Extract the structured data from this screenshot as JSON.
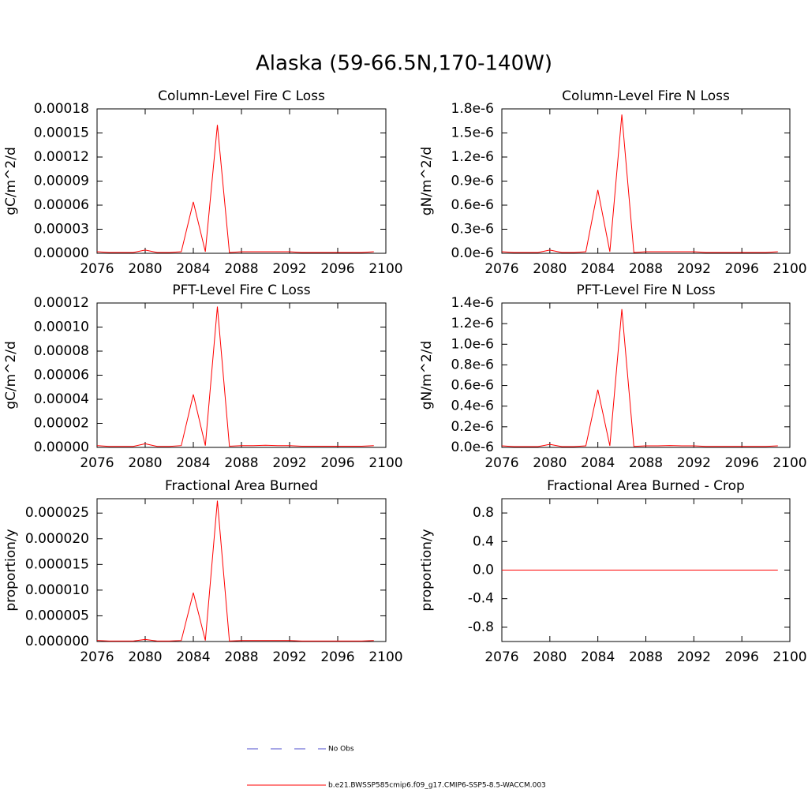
{
  "title": "Alaska (59-66.5N,170-140W)",
  "legend": [
    {
      "name": "No Obs",
      "color": "#4d4dcc",
      "dash": true
    },
    {
      "name": "b.e21.BWSSP585cmip6.f09_g17.CMIP6-SSP5-8.5-WACCM.003",
      "color": "#ff0000",
      "dash": false
    }
  ],
  "chart_data": [
    {
      "type": "line",
      "title": "Column-Level Fire C Loss",
      "y_label": "gC/m^2/d",
      "color": "#ff0000",
      "x": [
        2076,
        2077,
        2078,
        2079,
        2080,
        2081,
        2082,
        2083,
        2084,
        2085,
        2086,
        2087,
        2088,
        2089,
        2090,
        2091,
        2092,
        2093,
        2094,
        2095,
        2096,
        2097,
        2098,
        2099
      ],
      "values": [
        2e-06,
        1e-06,
        1e-06,
        1e-06,
        4e-06,
        1e-06,
        1e-06,
        2e-06,
        6.4e-05,
        2e-06,
        0.00016,
        1e-06,
        2e-06,
        2e-06,
        2e-06,
        2e-06,
        2e-06,
        1e-06,
        1e-06,
        1e-06,
        1e-06,
        1e-06,
        1e-06,
        2e-06
      ],
      "xlim": [
        2076,
        2100
      ],
      "xticks": [
        2076,
        2080,
        2084,
        2088,
        2092,
        2096,
        2100
      ],
      "ylim": [
        0,
        0.00018
      ],
      "yticks": [
        {
          "value": 0,
          "label": "0.00000"
        },
        {
          "value": 3e-05,
          "label": "0.00003"
        },
        {
          "value": 6e-05,
          "label": "0.00006"
        },
        {
          "value": 9e-05,
          "label": "0.00009"
        },
        {
          "value": 0.00012,
          "label": "0.00012"
        },
        {
          "value": 0.00015,
          "label": "0.00015"
        },
        {
          "value": 0.00018,
          "label": "0.00018"
        }
      ]
    },
    {
      "type": "line",
      "title": "Column-Level Fire N Loss",
      "y_label": "gN/m^2/d",
      "color": "#ff0000",
      "x": [
        2076,
        2077,
        2078,
        2079,
        2080,
        2081,
        2082,
        2083,
        2084,
        2085,
        2086,
        2087,
        2088,
        2089,
        2090,
        2091,
        2092,
        2093,
        2094,
        2095,
        2096,
        2097,
        2098,
        2099
      ],
      "values": [
        2e-08,
        1e-08,
        1e-08,
        1e-08,
        4e-08,
        1e-08,
        1e-08,
        2e-08,
        7.9e-07,
        2e-08,
        1.73e-06,
        1e-08,
        2e-08,
        2e-08,
        2e-08,
        2e-08,
        2e-08,
        1e-08,
        1e-08,
        1e-08,
        1e-08,
        1e-08,
        1e-08,
        2e-08
      ],
      "xlim": [
        2076,
        2100
      ],
      "xticks": [
        2076,
        2080,
        2084,
        2088,
        2092,
        2096,
        2100
      ],
      "ylim": [
        0,
        1.8e-06
      ],
      "yticks": [
        {
          "value": 0,
          "label": "0.0e-6"
        },
        {
          "value": 3e-07,
          "label": "0.3e-6"
        },
        {
          "value": 6e-07,
          "label": "0.6e-6"
        },
        {
          "value": 9e-07,
          "label": "0.9e-6"
        },
        {
          "value": 1.2e-06,
          "label": "1.2e-6"
        },
        {
          "value": 1.5e-06,
          "label": "1.5e-6"
        },
        {
          "value": 1.8e-06,
          "label": "1.8e-6"
        }
      ]
    },
    {
      "type": "line",
      "title": "PFT-Level Fire C Loss",
      "y_label": "gC/m^2/d",
      "color": "#ff0000",
      "x": [
        2076,
        2077,
        2078,
        2079,
        2080,
        2081,
        2082,
        2083,
        2084,
        2085,
        2086,
        2087,
        2088,
        2089,
        2090,
        2091,
        2092,
        2093,
        2094,
        2095,
        2096,
        2097,
        2098,
        2099
      ],
      "values": [
        1.5e-06,
        8e-07,
        8e-07,
        8e-07,
        3e-06,
        8e-07,
        8e-07,
        1.5e-06,
        4.4e-05,
        1.5e-06,
        0.000117,
        1e-06,
        1.5e-06,
        1.5e-06,
        1.8e-06,
        1.5e-06,
        1.5e-06,
        1e-06,
        1e-06,
        1e-06,
        1e-06,
        1e-06,
        1e-06,
        1.5e-06
      ],
      "xlim": [
        2076,
        2100
      ],
      "xticks": [
        2076,
        2080,
        2084,
        2088,
        2092,
        2096,
        2100
      ],
      "ylim": [
        0,
        0.00012
      ],
      "yticks": [
        {
          "value": 0,
          "label": "0.00000"
        },
        {
          "value": 2e-05,
          "label": "0.00002"
        },
        {
          "value": 4e-05,
          "label": "0.00004"
        },
        {
          "value": 6e-05,
          "label": "0.00006"
        },
        {
          "value": 8e-05,
          "label": "0.00008"
        },
        {
          "value": 0.0001,
          "label": "0.00010"
        },
        {
          "value": 0.00012,
          "label": "0.00012"
        }
      ]
    },
    {
      "type": "line",
      "title": "PFT-Level Fire N Loss",
      "y_label": "gN/m^2/d",
      "color": "#ff0000",
      "x": [
        2076,
        2077,
        2078,
        2079,
        2080,
        2081,
        2082,
        2083,
        2084,
        2085,
        2086,
        2087,
        2088,
        2089,
        2090,
        2091,
        2092,
        2093,
        2094,
        2095,
        2096,
        2097,
        2098,
        2099
      ],
      "values": [
        1.5e-08,
        8e-09,
        8e-09,
        8e-09,
        3e-08,
        8e-09,
        8e-09,
        1.5e-08,
        5.6e-07,
        1.5e-08,
        1.34e-06,
        1e-08,
        1.5e-08,
        1.5e-08,
        1.8e-08,
        1.5e-08,
        1.5e-08,
        1e-08,
        1e-08,
        1e-08,
        1e-08,
        1e-08,
        1e-08,
        1.5e-08
      ],
      "xlim": [
        2076,
        2100
      ],
      "xticks": [
        2076,
        2080,
        2084,
        2088,
        2092,
        2096,
        2100
      ],
      "ylim": [
        0,
        1.4e-06
      ],
      "yticks": [
        {
          "value": 0,
          "label": "0.0e-6"
        },
        {
          "value": 2e-07,
          "label": "0.2e-6"
        },
        {
          "value": 4e-07,
          "label": "0.4e-6"
        },
        {
          "value": 6e-07,
          "label": "0.6e-6"
        },
        {
          "value": 8e-07,
          "label": "0.8e-6"
        },
        {
          "value": 1e-06,
          "label": "1.0e-6"
        },
        {
          "value": 1.2e-06,
          "label": "1.2e-6"
        },
        {
          "value": 1.4e-06,
          "label": "1.4e-6"
        }
      ]
    },
    {
      "type": "line",
      "title": "Fractional Area Burned",
      "y_label": "proportion/y",
      "color": "#ff0000",
      "x": [
        2076,
        2077,
        2078,
        2079,
        2080,
        2081,
        2082,
        2083,
        2084,
        2085,
        2086,
        2087,
        2088,
        2089,
        2090,
        2091,
        2092,
        2093,
        2094,
        2095,
        2096,
        2097,
        2098,
        2099
      ],
      "values": [
        2e-07,
        1e-07,
        1e-07,
        1e-07,
        4e-07,
        1e-07,
        1e-07,
        2e-07,
        9.5e-06,
        2e-07,
        2.74e-05,
        1e-07,
        2e-07,
        2e-07,
        2e-07,
        2e-07,
        2e-07,
        1e-07,
        1e-07,
        1e-07,
        1e-07,
        1e-07,
        1e-07,
        2e-07
      ],
      "xlim": [
        2076,
        2100
      ],
      "xticks": [
        2076,
        2080,
        2084,
        2088,
        2092,
        2096,
        2100
      ],
      "ylim": [
        0,
        2.78e-05
      ],
      "yticks": [
        {
          "value": 0,
          "label": "0.000000"
        },
        {
          "value": 5e-06,
          "label": "0.000005"
        },
        {
          "value": 1e-05,
          "label": "0.000010"
        },
        {
          "value": 1.5e-05,
          "label": "0.000015"
        },
        {
          "value": 2e-05,
          "label": "0.000020"
        },
        {
          "value": 2.5e-05,
          "label": "0.000025"
        }
      ]
    },
    {
      "type": "line",
      "title": "Fractional Area Burned - Crop",
      "y_label": "proportion/y",
      "color": "#ff0000",
      "x": [
        2076,
        2077,
        2078,
        2079,
        2080,
        2081,
        2082,
        2083,
        2084,
        2085,
        2086,
        2087,
        2088,
        2089,
        2090,
        2091,
        2092,
        2093,
        2094,
        2095,
        2096,
        2097,
        2098,
        2099
      ],
      "values": [
        0,
        0,
        0,
        0,
        0,
        0,
        0,
        0,
        0,
        0,
        0,
        0,
        0,
        0,
        0,
        0,
        0,
        0,
        0,
        0,
        0,
        0,
        0,
        0
      ],
      "xlim": [
        2076,
        2100
      ],
      "xticks": [
        2076,
        2080,
        2084,
        2088,
        2092,
        2096,
        2100
      ],
      "ylim": [
        -1,
        1
      ],
      "yticks": [
        -0.8,
        -0.4,
        {
          "value": 0,
          "label": "0.0"
        },
        0.4,
        0.8
      ]
    }
  ]
}
